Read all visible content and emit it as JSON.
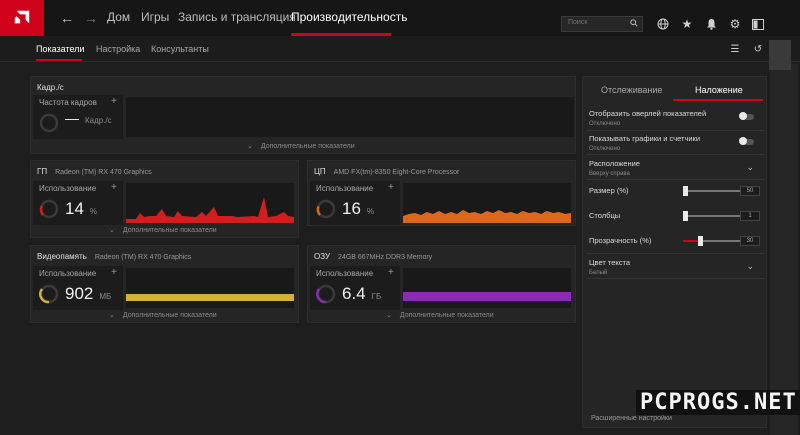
{
  "colors": {
    "accent": "#d0021b",
    "gpu_graph": "#d41e1e",
    "cpu_graph": "#e0661a",
    "vram_graph": "#d6b03c",
    "ram_graph": "#8a2bb5"
  },
  "topbar": {
    "logo_icon": "amd-logo",
    "back_icon": "arrow-left-icon",
    "forward_icon": "arrow-right-icon",
    "tabs": [
      {
        "label": "Дом"
      },
      {
        "label": "Игры"
      },
      {
        "label": "Запись и трансляция"
      },
      {
        "label": "Производительность",
        "active": true
      }
    ],
    "search_placeholder": "Поиск",
    "icons": [
      "globe-icon",
      "star-icon",
      "bell-icon",
      "gear-icon",
      "layout-icon"
    ]
  },
  "subnav": {
    "tabs": [
      {
        "label": "Показатели",
        "active": true
      },
      {
        "label": "Настройка"
      },
      {
        "label": "Консультанты"
      }
    ]
  },
  "fps_panel": {
    "title": "Кадр./с",
    "metric_label": "Частота кадров",
    "value": "—",
    "unit": "Кадр./с",
    "more": "Дополнительные показатели"
  },
  "gpu_panel": {
    "title": "ГП",
    "device": "Radeon (TM) RX 470 Graphics",
    "metric_label": "Использование",
    "value": "14",
    "unit": "%",
    "more": "Дополнительные показатели"
  },
  "cpu_panel": {
    "title": "ЦП",
    "device": "AMD FX(tm)-8350 Eight-Core Processor",
    "metric_label": "Использование",
    "value": "16",
    "unit": "%"
  },
  "vram_panel": {
    "title": "Видеопамять",
    "device": "Radeon (TM) RX 470 Graphics",
    "metric_label": "Использование",
    "value": "902",
    "unit": "МБ",
    "more": "Дополнительные показатели"
  },
  "ram_panel": {
    "title": "ОЗУ",
    "device": "24GB 667MHz DDR3 Memory",
    "metric_label": "Использование",
    "value": "6.4",
    "unit": "ГБ",
    "more": "Дополнительные показатели"
  },
  "side": {
    "tabs": [
      {
        "label": "Отслеживание"
      },
      {
        "label": "Наложение",
        "active": true
      }
    ],
    "overlay": {
      "label": "Отобразить оверлей показателей",
      "status": "Отключено",
      "enabled": false
    },
    "graphs": {
      "label": "Показывать графики и счетчики",
      "status": "Отключено",
      "enabled": false
    },
    "position": {
      "label": "Расположение",
      "value": "Вверху справа"
    },
    "size": {
      "label": "Размер (%)",
      "value": "50"
    },
    "columns": {
      "label": "Столбцы",
      "value": "1"
    },
    "transparency": {
      "label": "Прозрачность (%)",
      "value": "30"
    },
    "text_color": {
      "label": "Цвет текста",
      "value": "Белый"
    },
    "advanced": "Расширенные настройки"
  },
  "watermark": "PCPROGS.NET"
}
